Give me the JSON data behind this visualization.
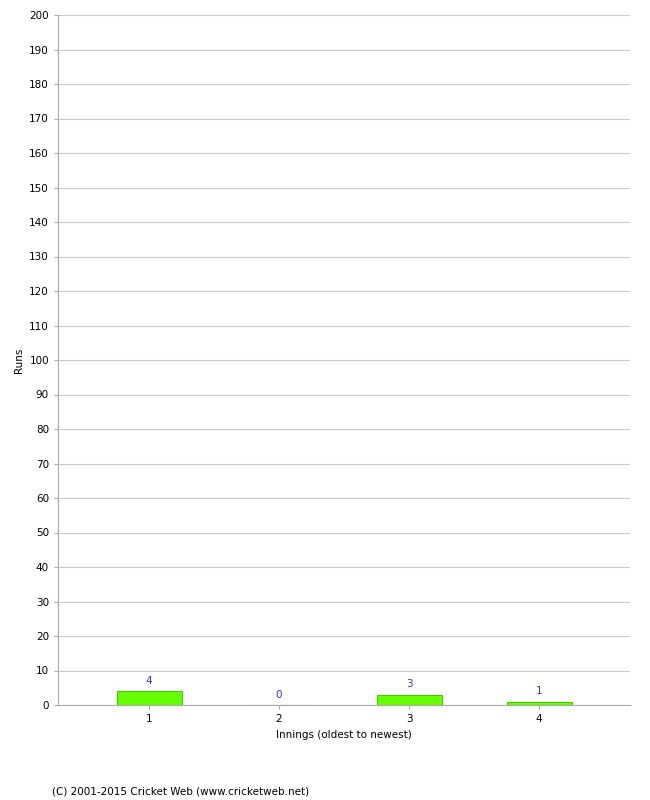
{
  "innings": [
    1,
    2,
    3,
    4
  ],
  "runs": [
    4,
    0,
    3,
    1
  ],
  "bar_color": "#66ff00",
  "bar_edge_color": "#44cc00",
  "label_color": "#3333cc",
  "xlabel": "Innings (oldest to newest)",
  "ylabel": "Runs",
  "ylim": [
    0,
    200
  ],
  "ytick_step": 10,
  "background_color": "#ffffff",
  "footer_text": "(C) 2001-2015 Cricket Web (www.cricketweb.net)",
  "label_fontsize": 7.5,
  "axis_tick_fontsize": 7.5,
  "axis_label_fontsize": 7.5,
  "footer_fontsize": 7.5,
  "grid_color": "#cccccc",
  "spine_color": "#aaaaaa"
}
